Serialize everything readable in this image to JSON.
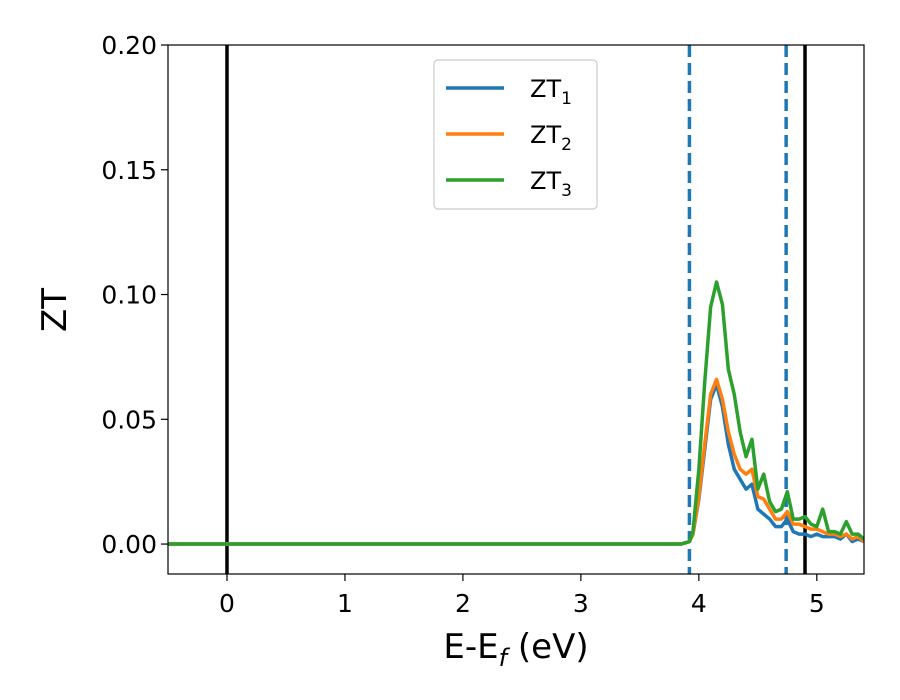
{
  "chart_data": {
    "type": "line",
    "xlabel": "E-E",
    "xlabel_subscript": "f",
    "xlabel_unit": " (eV)",
    "ylabel": "ZT",
    "xlim": [
      -0.5,
      5.4
    ],
    "ylim": [
      -0.012,
      0.2
    ],
    "x_ticks": [
      0,
      1,
      2,
      3,
      4,
      5
    ],
    "x_tick_labels": [
      "0",
      "1",
      "2",
      "3",
      "4",
      "5"
    ],
    "y_ticks": [
      0.0,
      0.05,
      0.1,
      0.15,
      0.2
    ],
    "y_tick_labels": [
      "0.00",
      "0.05",
      "0.10",
      "0.15",
      "0.20"
    ],
    "grid": false,
    "legend": {
      "position": "upper-center"
    },
    "colors": {
      "zt1": "#1f77b4",
      "zt2": "#ff7f0e",
      "zt3": "#2ca02c",
      "vline_solid": "#000000",
      "vline_dashed": "#1f77b4"
    },
    "vlines_solid": [
      0.0,
      4.9
    ],
    "vlines_dashed": [
      3.92,
      4.74
    ],
    "series": [
      {
        "name": "ZT",
        "subscript": "1",
        "x": [
          -0.5,
          3.85,
          3.92,
          3.95,
          4.0,
          4.05,
          4.1,
          4.15,
          4.2,
          4.25,
          4.3,
          4.35,
          4.4,
          4.45,
          4.5,
          4.55,
          4.6,
          4.65,
          4.7,
          4.75,
          4.8,
          4.85,
          4.9,
          4.95,
          5.0,
          5.05,
          5.1,
          5.15,
          5.2,
          5.25,
          5.3,
          5.35,
          5.4
        ],
        "values": [
          0,
          0,
          0.001,
          0.004,
          0.018,
          0.038,
          0.058,
          0.064,
          0.055,
          0.04,
          0.03,
          0.026,
          0.022,
          0.024,
          0.014,
          0.012,
          0.01,
          0.007,
          0.007,
          0.01,
          0.005,
          0.004,
          0.004,
          0.003,
          0.004,
          0.003,
          0.003,
          0.003,
          0.002,
          0.004,
          0.001,
          0.002,
          0.001
        ]
      },
      {
        "name": "ZT",
        "subscript": "2",
        "x": [
          -0.5,
          3.85,
          3.92,
          3.95,
          4.0,
          4.05,
          4.1,
          4.15,
          4.2,
          4.25,
          4.3,
          4.35,
          4.4,
          4.45,
          4.5,
          4.55,
          4.6,
          4.65,
          4.7,
          4.75,
          4.8,
          4.85,
          4.9,
          4.95,
          5.0,
          5.05,
          5.1,
          5.15,
          5.2,
          5.25,
          5.3,
          5.35,
          5.4
        ],
        "values": [
          0,
          0,
          0.001,
          0.004,
          0.019,
          0.04,
          0.06,
          0.066,
          0.058,
          0.045,
          0.036,
          0.03,
          0.028,
          0.03,
          0.019,
          0.018,
          0.014,
          0.01,
          0.01,
          0.013,
          0.008,
          0.008,
          0.007,
          0.006,
          0.006,
          0.005,
          0.004,
          0.004,
          0.003,
          0.004,
          0.002,
          0.003,
          0.001
        ]
      },
      {
        "name": "ZT",
        "subscript": "3",
        "x": [
          -0.5,
          3.85,
          3.92,
          3.95,
          4.0,
          4.05,
          4.1,
          4.15,
          4.2,
          4.25,
          4.3,
          4.35,
          4.4,
          4.45,
          4.5,
          4.55,
          4.6,
          4.65,
          4.7,
          4.75,
          4.8,
          4.85,
          4.9,
          4.95,
          5.0,
          5.05,
          5.1,
          5.15,
          5.2,
          5.25,
          5.3,
          5.35,
          5.4
        ],
        "values": [
          0,
          0,
          0.001,
          0.005,
          0.03,
          0.065,
          0.095,
          0.105,
          0.096,
          0.07,
          0.06,
          0.045,
          0.035,
          0.042,
          0.022,
          0.028,
          0.017,
          0.013,
          0.014,
          0.021,
          0.01,
          0.01,
          0.011,
          0.008,
          0.007,
          0.014,
          0.005,
          0.005,
          0.004,
          0.009,
          0.004,
          0.004,
          0.002
        ]
      }
    ]
  }
}
